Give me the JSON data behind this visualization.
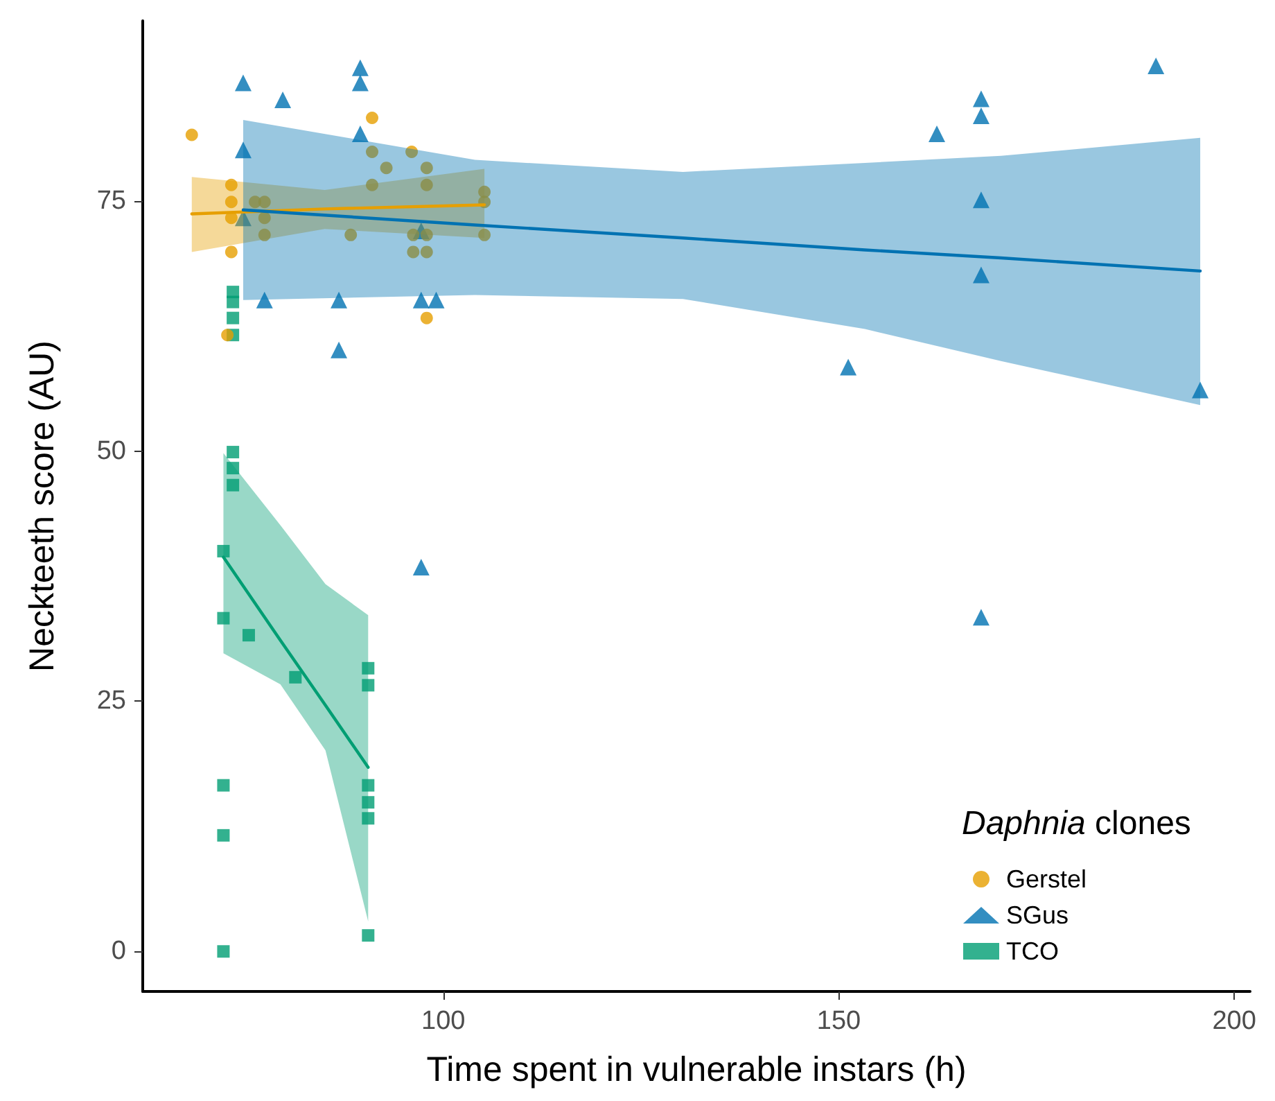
{
  "chart_data": {
    "type": "scatter",
    "xlabel": "Time spent in vulnerable instars (h)",
    "ylabel": "Neckteeth score (AU)",
    "legend_title": "Daphnia clones",
    "xlim": [
      62,
      202
    ],
    "xticks": [
      100,
      150,
      200
    ],
    "ylim": [
      -4,
      93
    ],
    "yticks": [
      0,
      25,
      50,
      75
    ],
    "grid": false,
    "legend": "bottom right",
    "series": [
      {
        "name": "Gerstel",
        "marker": "circle",
        "color": "#e69f00",
        "x": [
          68.2,
          73.2,
          73.2,
          73.2,
          73.2,
          72.7,
          76.2,
          77.4,
          77.4,
          77.4,
          88.3,
          91.0,
          91.0,
          91.0,
          92.8,
          96.0,
          96.2,
          96.2,
          97.9,
          97.9,
          97.9,
          97.9,
          97.9,
          105.2,
          105.2,
          105.2
        ],
        "values": [
          81.6,
          76.6,
          74.9,
          73.3,
          69.9,
          61.6,
          74.9,
          74.9,
          73.3,
          71.6,
          71.6,
          83.3,
          79.9,
          76.6,
          78.3,
          79.9,
          71.6,
          69.9,
          78.3,
          76.6,
          71.6,
          69.9,
          63.3,
          75.9,
          74.9,
          71.6
        ]
      },
      {
        "name": "SGus",
        "marker": "triangle",
        "color": "#0072b2",
        "x": [
          74.7,
          74.7,
          74.7,
          79.7,
          89.5,
          89.5,
          89.5,
          77.4,
          86.8,
          86.8,
          97.2,
          97.2,
          99.1,
          97.2,
          168.0,
          168.0,
          162.4,
          190.1,
          168.0,
          168.0,
          151.2,
          195.7,
          168.0
        ],
        "values": [
          86.8,
          80.1,
          73.3,
          85.1,
          88.3,
          86.8,
          81.7,
          65.1,
          65.1,
          60.1,
          72.0,
          65.1,
          65.1,
          38.4,
          85.2,
          83.5,
          81.7,
          88.5,
          75.1,
          67.6,
          58.4,
          56.1,
          33.4
        ]
      },
      {
        "name": "TCO",
        "marker": "square",
        "color": "#009e73",
        "x": [
          73.4,
          73.4,
          73.4,
          72.2,
          72.2,
          75.4,
          81.3,
          90.5,
          90.5,
          90.5,
          90.5,
          90.5,
          72.2,
          72.2,
          72.2,
          90.5,
          73.4,
          73.4,
          73.4,
          73.4
        ],
        "values": [
          49.9,
          48.3,
          46.6,
          40.0,
          33.3,
          31.6,
          27.4,
          28.3,
          26.6,
          16.6,
          14.9,
          13.3,
          16.6,
          11.6,
          0,
          1.6,
          65.9,
          64.9,
          63.3,
          61.6
        ]
      },
      {
        "type": "line",
        "color": "#e69f00",
        "x": [
          68.2,
          85,
          105.2
        ],
        "values": [
          73.7,
          74.2,
          74.6
        ],
        "lower": [
          69.9,
          72.2,
          71.3
        ],
        "upper": [
          77.4,
          76.1,
          78.2
        ]
      },
      {
        "type": "line",
        "color": "#0072b2",
        "x": [
          74.7,
          104,
          130.3,
          153.3,
          170.5,
          195.7
        ],
        "values": [
          74.1,
          72.6,
          71.3,
          70.1,
          69.3,
          68.0
        ],
        "lower": [
          65.1,
          65.6,
          65.2,
          62.2,
          59.0,
          54.6
        ],
        "upper": [
          83.1,
          79.1,
          77.9,
          78.8,
          79.5,
          81.3
        ]
      },
      {
        "type": "line",
        "color": "#009e73",
        "x": [
          72.2,
          79.4,
          85.1,
          90.5
        ],
        "values": [
          39.4,
          31.1,
          24.6,
          18.4
        ],
        "lower": [
          29.8,
          26.7,
          20.1,
          3.0
        ],
        "upper": [
          49.8,
          42.6,
          36.7,
          33.6
        ]
      }
    ]
  }
}
